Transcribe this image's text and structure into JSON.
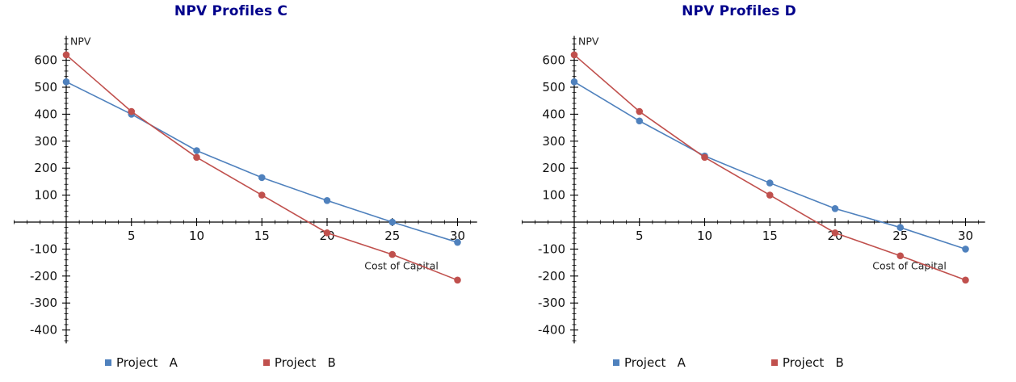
{
  "chart_data": [
    {
      "type": "line",
      "title": "NPV Profiles C",
      "title_color": "#00008B",
      "ylabel": "NPV",
      "xlabel": "Cost of Capital",
      "x": [
        0,
        5,
        10,
        15,
        20,
        25,
        30
      ],
      "xticks": [
        5,
        10,
        15,
        20,
        25,
        30
      ],
      "yticks": [
        600,
        500,
        400,
        300,
        200,
        100,
        -100,
        -200,
        -300,
        -400
      ],
      "xlim": [
        -4,
        31.5
      ],
      "ylim": [
        -450,
        690
      ],
      "grid": false,
      "legend_position": "bottom",
      "series": [
        {
          "name": "Project   A",
          "color": "#4f81bd",
          "values": [
            520,
            400,
            265,
            165,
            80,
            0,
            -75
          ]
        },
        {
          "name": "Project   B",
          "color": "#c0504d",
          "values": [
            620,
            410,
            240,
            100,
            -40,
            -120,
            -215
          ]
        }
      ]
    },
    {
      "type": "line",
      "title": "NPV Profiles D",
      "title_color": "#00008B",
      "ylabel": "NPV",
      "xlabel": "Cost of Capital",
      "x": [
        0,
        5,
        10,
        15,
        20,
        25,
        30
      ],
      "xticks": [
        5,
        10,
        15,
        20,
        25,
        30
      ],
      "yticks": [
        600,
        500,
        400,
        300,
        200,
        100,
        -100,
        -200,
        -300,
        -400
      ],
      "xlim": [
        -4,
        31.5
      ],
      "ylim": [
        -450,
        690
      ],
      "grid": false,
      "legend_position": "bottom",
      "series": [
        {
          "name": "Project   A",
          "color": "#4f81bd",
          "values": [
            520,
            375,
            245,
            145,
            50,
            -20,
            -100
          ]
        },
        {
          "name": "Project   B",
          "color": "#c0504d",
          "values": [
            620,
            410,
            240,
            100,
            -40,
            -125,
            -215
          ]
        }
      ]
    }
  ]
}
